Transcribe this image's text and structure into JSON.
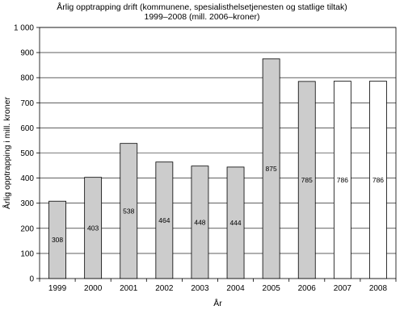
{
  "chart_data": {
    "type": "bar",
    "title": "Årlig opptrapping drift (kommunene, spesialisthelsetjenesten og statlige tiltak)",
    "subtitle": "1999–2008 (mill. 2006–kroner)",
    "xlabel": "År",
    "ylabel": "Årlig opptrapping i mill. kroner",
    "categories": [
      "1999",
      "2000",
      "2001",
      "2002",
      "2003",
      "2004",
      "2005",
      "2006",
      "2007",
      "2008"
    ],
    "values": [
      308,
      403,
      538,
      464,
      448,
      444,
      875,
      785,
      786,
      786
    ],
    "data_labels": [
      "308",
      "403",
      "538",
      "464",
      "448",
      "444",
      "875",
      "785",
      "786",
      "786"
    ],
    "bar_colors": [
      "#cccccc",
      "#cccccc",
      "#cccccc",
      "#cccccc",
      "#cccccc",
      "#cccccc",
      "#cccccc",
      "#cccccc",
      "#ffffff",
      "#ffffff"
    ],
    "ylim": [
      0,
      1000
    ],
    "yticks": [
      0,
      100,
      200,
      300,
      400,
      500,
      600,
      700,
      800,
      900,
      1000
    ],
    "ytick_labels": [
      "0",
      "100",
      "200",
      "300",
      "400",
      "500",
      "600",
      "700",
      "800",
      "900",
      "1 000"
    ],
    "grid": true,
    "legend": "none"
  }
}
